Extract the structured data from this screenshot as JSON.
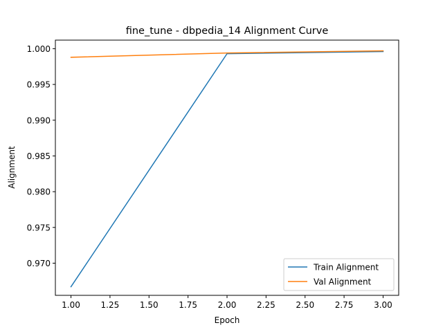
{
  "chart_data": {
    "type": "line",
    "title": "fine_tune - dbpedia_14 Alignment Curve",
    "xlabel": "Epoch",
    "ylabel": "Alignment",
    "xlim": [
      0.9,
      3.1
    ],
    "ylim": [
      0.9655,
      1.0012
    ],
    "xticks": [
      1.0,
      1.25,
      1.5,
      1.75,
      2.0,
      2.25,
      2.5,
      2.75,
      3.0
    ],
    "xtick_labels": [
      "1.00",
      "1.25",
      "1.50",
      "1.75",
      "2.00",
      "2.25",
      "2.50",
      "2.75",
      "3.00"
    ],
    "yticks": [
      0.97,
      0.975,
      0.98,
      0.985,
      0.99,
      0.995,
      1.0
    ],
    "ytick_labels": [
      "0.970",
      "0.975",
      "0.980",
      "0.985",
      "0.990",
      "0.995",
      "1.000"
    ],
    "grid": false,
    "legend_position": "lower-right",
    "x": [
      1,
      2,
      3
    ],
    "series": [
      {
        "name": "Train Alignment",
        "color": "#1f77b4",
        "values": [
          0.9667,
          0.9993,
          0.9996
        ]
      },
      {
        "name": "Val Alignment",
        "color": "#ff7f0e",
        "values": [
          0.9988,
          0.9994,
          0.9997
        ]
      }
    ]
  }
}
